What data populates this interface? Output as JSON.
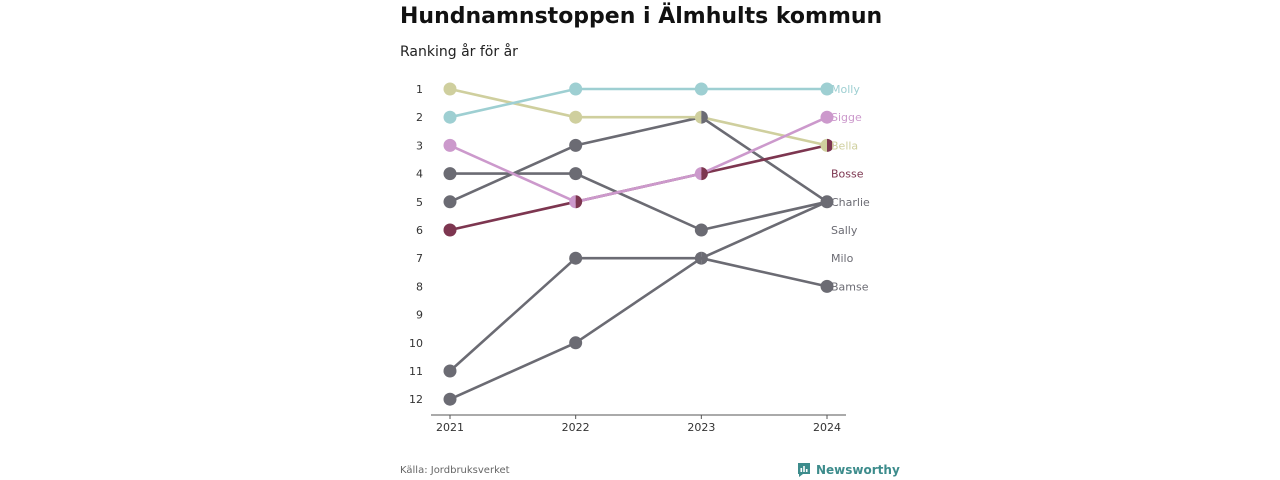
{
  "header": {
    "title": "Hundnamnstoppen i Älmhults kommun",
    "subtitle": "Ranking år för år"
  },
  "footer": {
    "source": "Källa: Jordbruksverket",
    "brand": "Newsworthy"
  },
  "colors": {
    "teal": "#9ecfd2",
    "olive": "#cfcf9e",
    "pink": "#cc99cc",
    "maroon": "#7d3650",
    "gray": "#6b6b73",
    "brand": "#3d8c8c"
  },
  "chart_data": {
    "type": "line",
    "subtype": "bump",
    "x": [
      "2021",
      "2022",
      "2023",
      "2024"
    ],
    "y_ticks": [
      "1",
      "2",
      "3",
      "4",
      "5",
      "6",
      "7",
      "8",
      "9",
      "10",
      "11",
      "12"
    ],
    "ylim": [
      1,
      12
    ],
    "y_reversed": true,
    "grid": false,
    "series": [
      {
        "name": "Milo",
        "color": "#6b6b73",
        "values": [
          11,
          7,
          7,
          8
        ]
      },
      {
        "name": "Bamse",
        "color": "#6b6b73",
        "values": [
          12,
          10,
          7,
          5
        ]
      },
      {
        "name": "Charlie",
        "color": "#6b6b73",
        "values": [
          4,
          4,
          6,
          5
        ]
      },
      {
        "name": "Sally",
        "color": "#6b6b73",
        "values": [
          5,
          3,
          2,
          5
        ]
      },
      {
        "name": "Bosse",
        "color": "#7d3650",
        "values": [
          6,
          5,
          4,
          3
        ]
      },
      {
        "name": "Bella",
        "color": "#cfcf9e",
        "values": [
          1,
          2,
          2,
          3
        ]
      },
      {
        "name": "Sigge",
        "color": "#cc99cc",
        "values": [
          3,
          5,
          4,
          2
        ]
      },
      {
        "name": "Molly",
        "color": "#9ecfd2",
        "values": [
          2,
          1,
          1,
          1
        ]
      }
    ],
    "end_labels": [
      {
        "text": "Molly",
        "rank": 1,
        "color": "#9ecfd2"
      },
      {
        "text": "Sigge",
        "rank": 2,
        "color": "#cc99cc"
      },
      {
        "text": "Bella",
        "rank": 3,
        "color": "#cfcf9e"
      },
      {
        "text": "Bosse",
        "rank": 4,
        "color": "#7d3650"
      },
      {
        "text": "Charlie",
        "rank": 5,
        "color": "#6b6b73"
      },
      {
        "text": "Sally",
        "rank": 6,
        "color": "#6b6b73"
      },
      {
        "text": "Milo",
        "rank": 7,
        "color": "#6b6b73"
      },
      {
        "text": "Bamse",
        "rank": 8,
        "color": "#6b6b73"
      }
    ]
  }
}
